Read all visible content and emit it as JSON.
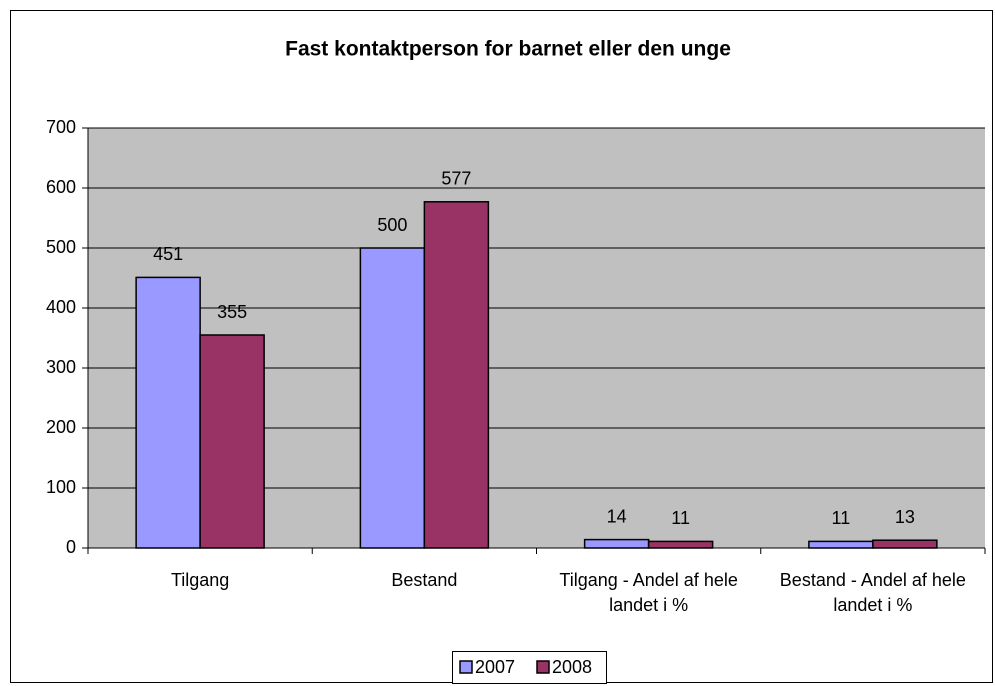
{
  "chart_data": {
    "type": "bar",
    "title": "Fast kontaktperson for barnet eller den unge",
    "categories": [
      "Tilgang",
      "Bestand",
      "Tilgang - Andel af hele landet i %",
      "Bestand - Andel af hele landet i %"
    ],
    "series": [
      {
        "name": "2007",
        "color": "#9999ff",
        "values": [
          451,
          500,
          14,
          11
        ]
      },
      {
        "name": "2008",
        "color": "#993366",
        "values": [
          355,
          577,
          11,
          13
        ]
      }
    ],
    "ylim": [
      0,
      700
    ],
    "yticks": [
      0,
      100,
      200,
      300,
      400,
      500,
      600,
      700
    ],
    "grid": true,
    "legend": "bottom"
  }
}
